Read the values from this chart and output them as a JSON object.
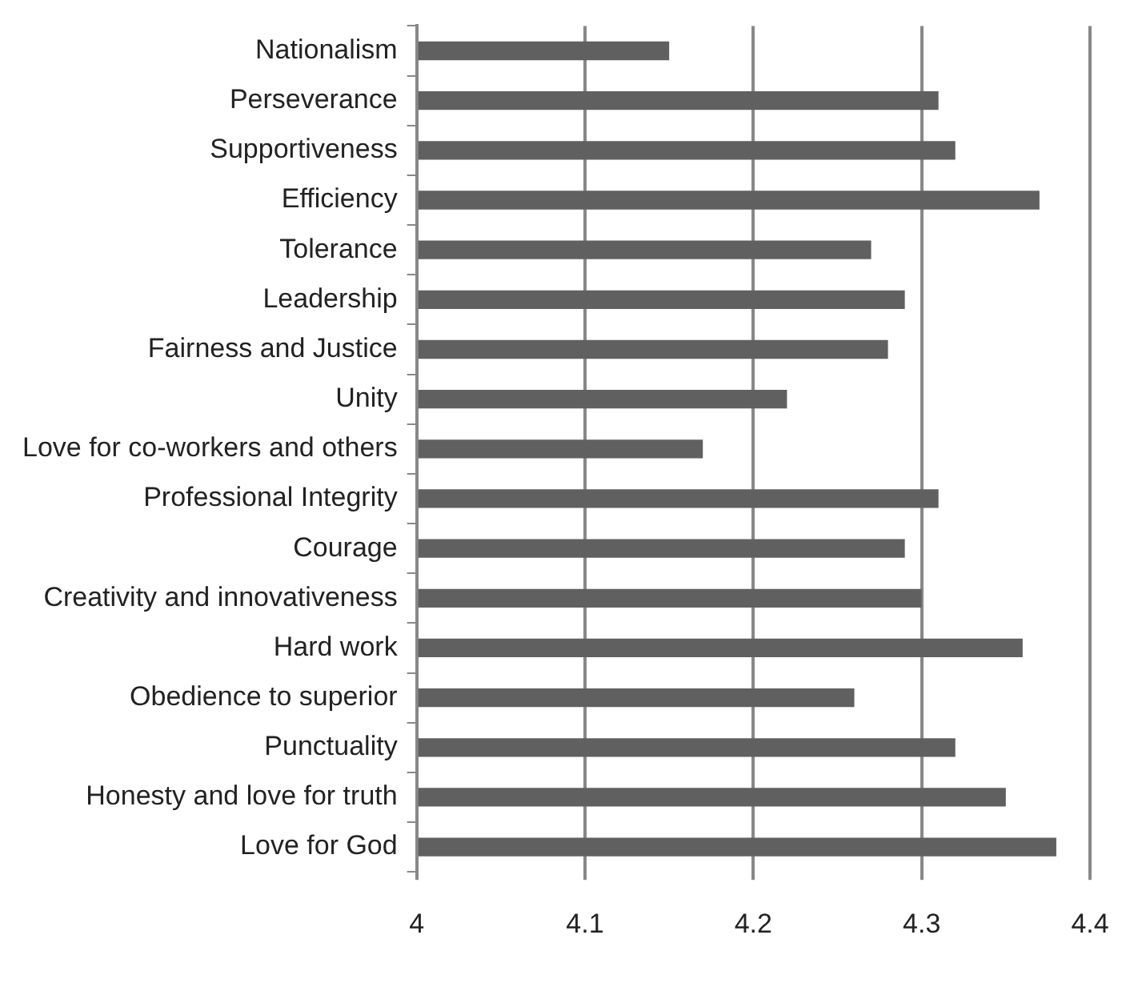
{
  "chart_data": {
    "type": "bar",
    "orientation": "horizontal",
    "categories": [
      "Nationalism",
      "Perseverance",
      "Supportiveness",
      "Efficiency",
      "Tolerance",
      "Leadership",
      "Fairness and Justice",
      "Unity",
      "Love for co-workers and others",
      "Professional Integrity",
      "Courage",
      "Creativity and innovativeness",
      "Hard work",
      "Obedience to superior",
      "Punctuality",
      "Honesty and love for truth",
      "Love for God"
    ],
    "values": [
      4.15,
      4.31,
      4.32,
      4.37,
      4.27,
      4.29,
      4.28,
      4.22,
      4.17,
      4.31,
      4.29,
      4.3,
      4.36,
      4.26,
      4.32,
      4.35,
      4.38
    ],
    "color": "#606060",
    "xlim": [
      4,
      4.4
    ],
    "xticks": [
      4,
      4.1,
      4.2,
      4.3,
      4.4
    ],
    "grid": "x",
    "legend": false
  }
}
